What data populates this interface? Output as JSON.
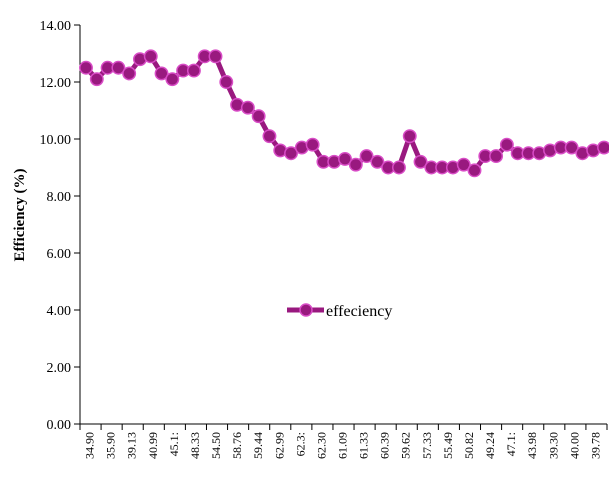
{
  "chart_data": {
    "type": "line",
    "ylabel": "Efficiency (%)",
    "ylim": [
      0,
      14
    ],
    "ytick_labels": [
      "0.00",
      "2.00",
      "4.00",
      "6.00",
      "8.00",
      "10.00",
      "12.00",
      "14.00"
    ],
    "x_tick_labels": [
      "34.90",
      "35.90",
      "39.13",
      "40.99",
      "45.1:",
      "48.33",
      "54.50",
      "58.76",
      "59.44",
      "62.99",
      "62.3:",
      "62.30",
      "61.09",
      "61.33",
      "60.39",
      "59.62",
      "57.33",
      "55.49",
      "50.82",
      "49.24",
      "47.1:",
      "43.98",
      "39.30",
      "40.00",
      "39.78"
    ],
    "series": [
      {
        "name": "effeciency",
        "color": "#99197f",
        "values": [
          12.5,
          12.1,
          12.5,
          12.5,
          12.3,
          12.8,
          12.9,
          12.3,
          12.1,
          12.4,
          12.4,
          12.9,
          12.9,
          12.0,
          11.2,
          11.1,
          10.8,
          10.1,
          9.6,
          9.5,
          9.7,
          9.8,
          9.2,
          9.2,
          9.3,
          9.1,
          9.4,
          9.2,
          9.0,
          9.0,
          10.1,
          9.2,
          9.0,
          9.0,
          9.0,
          9.1,
          8.9,
          9.4,
          9.4,
          9.8,
          9.5,
          9.5,
          9.5,
          9.6,
          9.7,
          9.7,
          9.5,
          9.6,
          9.7
        ]
      }
    ],
    "legend": {
      "label": "effeciency",
      "placement": "center"
    },
    "grid": false
  }
}
